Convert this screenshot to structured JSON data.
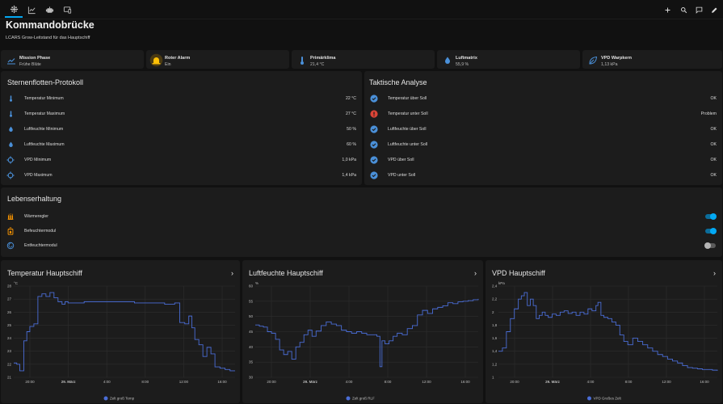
{
  "topbar": {
    "tabs": [
      {
        "name": "tab-overview",
        "icon": "view-dashboard-icon"
      },
      {
        "name": "tab-history",
        "icon": "chart-line-icon"
      },
      {
        "name": "tab-devices",
        "icon": "robot-icon"
      },
      {
        "name": "tab-media",
        "icon": "devices-icon"
      }
    ],
    "actions": [
      "plus-icon",
      "search-icon",
      "assist-icon",
      "pencil-icon"
    ]
  },
  "page": {
    "title": "Kommandobrücke",
    "subtitle": "LCARS Grow-Leitstand für das Hauptschiff"
  },
  "tiles": [
    {
      "name": "Mission Phase",
      "state": "Frühe Blüte",
      "icon": "chart-timeline-icon"
    },
    {
      "name": "Roter Alarm",
      "state": "Ein",
      "icon": "alarm-light-icon"
    },
    {
      "name": "Primärklima",
      "state": "21,4 °C",
      "icon": "thermometer-icon"
    },
    {
      "name": "Luftmatrix",
      "state": "55,9 %",
      "icon": "water-percent-icon"
    },
    {
      "name": "VPD Warpkern",
      "state": "1,13 kPa",
      "icon": "leaf-icon"
    }
  ],
  "protocol": {
    "title": "Sternenflotten-Protokoll",
    "rows": [
      {
        "icon": "thermometer-icon",
        "name": "Temperatur Minimum",
        "value": "22 °C"
      },
      {
        "icon": "thermometer-icon",
        "name": "Temperatur Maximum",
        "value": "27 °C"
      },
      {
        "icon": "water-icon",
        "name": "Luftfeuchte Minimum",
        "value": "50 %"
      },
      {
        "icon": "water-icon",
        "name": "Luftfeuchte Maximum",
        "value": "60 %"
      },
      {
        "icon": "crosshairs-icon",
        "name": "VPD Minimum",
        "value": "1,0 kPa"
      },
      {
        "icon": "crosshairs-icon",
        "name": "VPD Maximum",
        "value": "1,4 kPa"
      }
    ]
  },
  "analysis": {
    "title": "Taktische Analyse",
    "rows": [
      {
        "icon": "check-circle-icon",
        "name": "Temperatur über Soll",
        "value": "OK"
      },
      {
        "icon": "alert-circle-icon",
        "name": "Temperatur unter Soll",
        "value": "Problem"
      },
      {
        "icon": "check-circle-icon",
        "name": "Luftfeuchte über Soll",
        "value": "OK"
      },
      {
        "icon": "check-circle-icon",
        "name": "Luftfeuchte unter Soll",
        "value": "OK"
      },
      {
        "icon": "check-circle-icon",
        "name": "VPD über Soll",
        "value": "OK"
      },
      {
        "icon": "check-circle-icon",
        "name": "VPD unter Soll",
        "value": "OK"
      }
    ]
  },
  "life_support": {
    "title": "Lebenserhaltung",
    "rows": [
      {
        "icon": "heater-icon",
        "name": "Wärmeregler",
        "on": true
      },
      {
        "icon": "humidifier-icon",
        "name": "Befeuchtermodul",
        "on": true
      },
      {
        "icon": "dehumidifier-icon",
        "name": "Entfeuchtermodul",
        "on": false
      }
    ]
  },
  "colors": {
    "accent": "#03a9f4",
    "line": "#4a6dd6",
    "check": "#4a90d9",
    "alert": "#db4437",
    "card": "#1c1c1c",
    "background": "#111111",
    "orange": "#ff9800"
  },
  "chart_data": [
    {
      "type": "line",
      "title": "Temperatur Hauptschiff",
      "unit": "°C",
      "legend": "Zelt groß Temp",
      "yticks": [
        "28",
        "27",
        "26",
        "25",
        "24",
        "23",
        "22",
        "21"
      ],
      "ylim": [
        21,
        28
      ],
      "xticks": [
        "20:00",
        "29. März",
        "4:00",
        "8:00",
        "12:00",
        "16:00"
      ],
      "xlim": [
        0,
        22
      ],
      "x": [
        0,
        0.3,
        0.6,
        1,
        1.3,
        1.6,
        2,
        2.4,
        2.8,
        3.2,
        3.6,
        4,
        4.4,
        4.8,
        5.1,
        5.4,
        5.7,
        6,
        6.5,
        7,
        8,
        9,
        10,
        11,
        12,
        13,
        14,
        15,
        16,
        16.5,
        17,
        17.4,
        17.7,
        18,
        18.4,
        18.8,
        19.2,
        19.6,
        20,
        20.5,
        21,
        21.5,
        22
      ],
      "y": [
        22.1,
        22.0,
        21.5,
        23.8,
        24.5,
        24.9,
        25.1,
        27.2,
        27.4,
        27.2,
        27.5,
        27.1,
        26.8,
        26.6,
        26.8,
        26.7,
        26.7,
        26.7,
        26.7,
        26.8,
        26.8,
        26.8,
        26.8,
        26.8,
        26.7,
        26.7,
        26.7,
        26.6,
        26.7,
        25.2,
        25.1,
        25.7,
        24.8,
        23.9,
        23.5,
        22.6,
        23.3,
        22.8,
        21.8,
        21.7,
        21.6,
        21.5,
        21.5
      ]
    },
    {
      "type": "line",
      "title": "Luftfeuchte Hauptschiff",
      "unit": "%",
      "legend": "Zelt groß RLF",
      "yticks": [
        "60",
        "55",
        "50",
        "45",
        "40",
        "35",
        "30"
      ],
      "ylim": [
        30,
        60
      ],
      "xticks": [
        "20:00",
        "29. März",
        "4:00",
        "8:00",
        "12:00",
        "16:00"
      ],
      "xlim": [
        0,
        22
      ],
      "x": [
        0,
        0.4,
        0.8,
        1.2,
        1.6,
        2,
        2.4,
        2.8,
        3.2,
        3.6,
        4,
        4.4,
        4.8,
        5.2,
        5.6,
        6,
        6.5,
        7,
        7.5,
        8,
        8.5,
        9,
        9.5,
        10,
        10.5,
        11,
        11.5,
        12,
        12.3,
        12.5,
        12.8,
        13.2,
        13.6,
        14,
        14.5,
        15,
        15.5,
        16,
        16.5,
        17,
        17.5,
        18,
        18.5,
        19,
        19.5,
        20,
        20.5,
        21,
        21.5,
        22
      ],
      "y": [
        47.2,
        46.8,
        46.5,
        45,
        44.5,
        42.5,
        39,
        37.5,
        38.5,
        36,
        40,
        41.5,
        44,
        45.5,
        43.5,
        45.2,
        47,
        48.2,
        47.5,
        47,
        45.5,
        45,
        44.5,
        45,
        44.5,
        44,
        44,
        43.5,
        33.5,
        42,
        41,
        42,
        43.5,
        44.5,
        44,
        46,
        47,
        50.5,
        52,
        51,
        52.5,
        53,
        53.5,
        54.5,
        54.2,
        54.8,
        55,
        55.2,
        55.5,
        55.8
      ]
    },
    {
      "type": "line",
      "title": "VPD Hauptschiff",
      "unit": "kPa",
      "legend": "VPD Großes Zelt",
      "yticks": [
        "2,4",
        "2,2",
        "2",
        "1,8",
        "1,6",
        "1,4",
        "1,2",
        "1"
      ],
      "ylim": [
        1.0,
        2.4
      ],
      "xticks": [
        "20:00",
        "29. März",
        "4:00",
        "8:00",
        "12:00",
        "16:00"
      ],
      "xlim": [
        0,
        22
      ],
      "x": [
        0,
        0.4,
        0.8,
        1.2,
        1.6,
        2,
        2.3,
        2.6,
        2.9,
        3.2,
        3.5,
        3.8,
        4.1,
        4.4,
        4.7,
        5,
        5.4,
        5.8,
        6.2,
        6.6,
        7,
        7.4,
        7.8,
        8.2,
        8.6,
        9,
        9.4,
        9.8,
        10,
        10.3,
        10.6,
        11,
        11.4,
        11.8,
        12.2,
        12.6,
        13,
        13.5,
        14,
        14.5,
        15,
        15.5,
        16,
        16.5,
        17,
        17.5,
        18,
        18.5,
        19,
        19.5,
        20,
        20.5,
        21,
        21.5,
        22
      ],
      "y": [
        1.4,
        1.45,
        1.7,
        1.9,
        2.05,
        2.2,
        2.25,
        2.3,
        2.1,
        2.2,
        2.1,
        1.9,
        1.95,
        2.0,
        1.95,
        1.92,
        1.97,
        1.95,
        2.0,
        2.02,
        1.98,
        2.0,
        1.95,
        2.0,
        1.97,
        2.05,
        2.02,
        2.1,
        2.15,
        1.95,
        1.92,
        1.9,
        1.85,
        1.8,
        1.65,
        1.55,
        1.5,
        1.6,
        1.55,
        1.5,
        1.45,
        1.4,
        1.35,
        1.32,
        1.28,
        1.25,
        1.22,
        1.18,
        1.15,
        1.14,
        1.13,
        1.12,
        1.12,
        1.11,
        1.1
      ]
    }
  ]
}
